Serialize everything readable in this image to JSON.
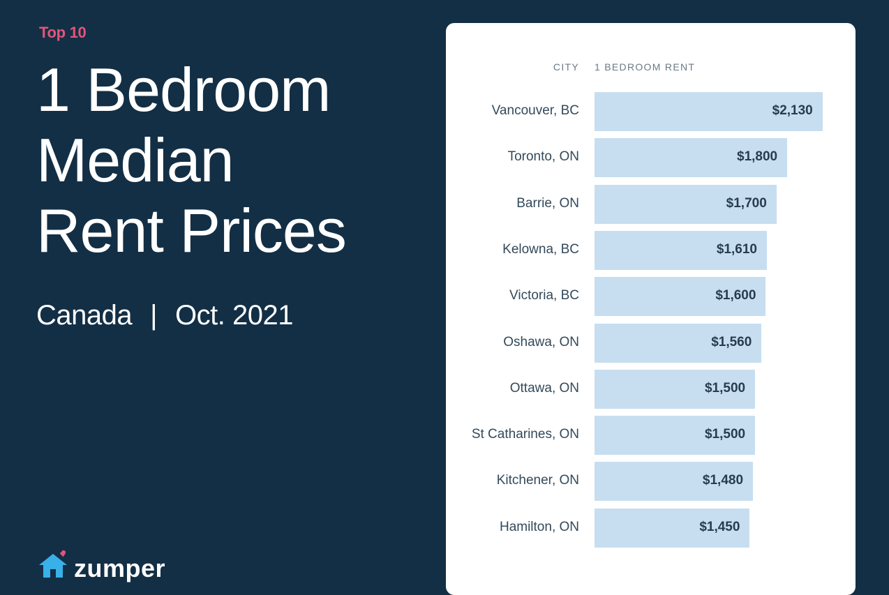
{
  "header": {
    "eyebrow": "Top 10",
    "title_lines": [
      "1 Bedroom",
      "Median",
      "Rent Prices"
    ],
    "country": "Canada",
    "separator": "|",
    "date": "Oct. 2021"
  },
  "brand": {
    "name": "zumper",
    "logo_icon": "house-icon",
    "accent": "#e4547b"
  },
  "colors": {
    "background": "#132f45",
    "bar": "#c7def0",
    "card": "#ffffff"
  },
  "chart_data": {
    "type": "bar",
    "orientation": "horizontal",
    "column_headers": [
      "CITY",
      "1 BEDROOM RENT"
    ],
    "categories": [
      "Vancouver, BC",
      "Toronto, ON",
      "Barrie, ON",
      "Kelowna, BC",
      "Victoria, BC",
      "Oshawa, ON",
      "Ottawa, ON",
      "St Catharines, ON",
      "Kitchener, ON",
      "Hamilton, ON"
    ],
    "values": [
      2130,
      1800,
      1700,
      1610,
      1600,
      1560,
      1500,
      1500,
      1480,
      1450
    ],
    "value_labels": [
      "$2,130",
      "$1,800",
      "$1,700",
      "$1,610",
      "$1,600",
      "$1,560",
      "$1,500",
      "$1,500",
      "$1,480",
      "$1,450"
    ],
    "title": "",
    "xlabel": "",
    "ylabel": ""
  }
}
